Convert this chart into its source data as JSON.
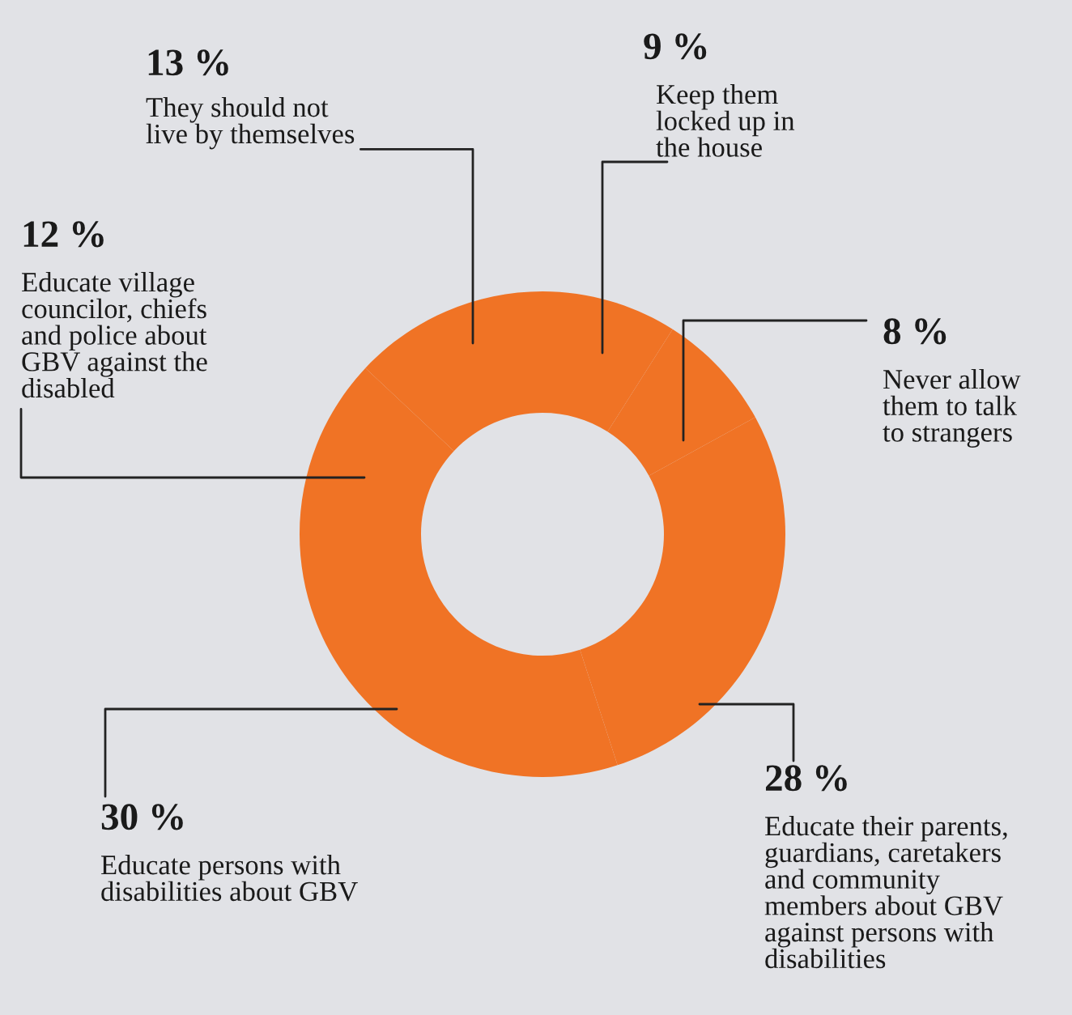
{
  "chart_data": {
    "type": "donut",
    "categories": [
      "Keep them\nlocked up in\nthe house",
      "Never allow\nthem to talk\nto strangers",
      "Educate their parents,\nguardians, caretakers\nand community\nmembers about GBV\nagainst persons with\ndisabilities",
      "Educate persons with\ndisabilities about GBV",
      "Educate village\ncouncilor, chiefs\nand police about\nGBV against the\ndisabled",
      "They should not\nlive by themselves"
    ],
    "values": [
      9,
      8,
      28,
      30,
      12,
      13
    ],
    "value_labels": [
      "9 %",
      "8 %",
      "28 %",
      "30 %",
      "12 %",
      "13 %"
    ],
    "colors": [
      "#f07325",
      "#f07325",
      "#f07325",
      "#f07325",
      "#f07325",
      "#f07325"
    ]
  }
}
